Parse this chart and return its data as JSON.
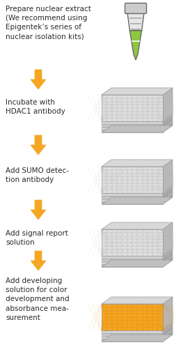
{
  "bg_color": "#ffffff",
  "text_color": "#2a2a2a",
  "arrow_color": "#f5a623",
  "plate_top_fill": "#e0e0e0",
  "plate_top_fill_orange": "#f5a623",
  "plate_grid_color": "#b8b8b8",
  "plate_grid_color_orange": "#e09010",
  "plate_side_color": "#c8c8c8",
  "plate_rim_color": "#d8d8d8",
  "plate_edge": "#999999",
  "tube_green": "#8dc63f",
  "tube_cap": "#cccccc",
  "tube_body_gray": "#e8e8e8",
  "tube_outline": "#666666",
  "steps": [
    "Prepare nuclear extract\n(We recommend using\nEpigentek’s series of\nnuclear isolation kits)",
    "Incubate with\nHDAC1 antibody",
    "Add SUMO detec-\ntion antibody",
    "Add signal report\nsolution",
    "Add developing\nsolution for color\ndevelopment and\nabsorbance mea-\nsurement"
  ],
  "plate_colored": [
    false,
    false,
    false,
    true
  ],
  "figsize": [
    2.5,
    5.05
  ],
  "dpi": 100
}
